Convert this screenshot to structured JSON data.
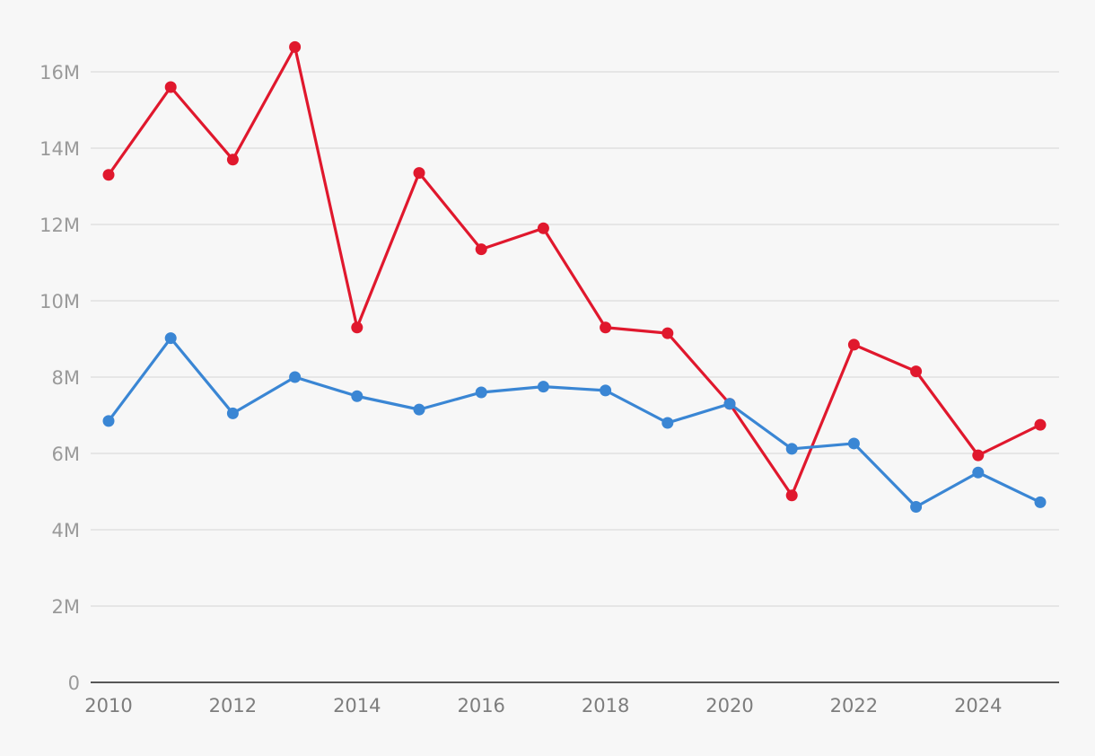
{
  "chart_data": {
    "type": "line",
    "title": "",
    "xlabel": "",
    "ylabel": "",
    "x": [
      2010,
      2011,
      2012,
      2013,
      2014,
      2015,
      2016,
      2017,
      2018,
      2019,
      2020,
      2021,
      2022,
      2023,
      2024,
      2025
    ],
    "xticks": [
      {
        "value": 2010,
        "label": "2010"
      },
      {
        "value": 2012,
        "label": "2012"
      },
      {
        "value": 2014,
        "label": "2014"
      },
      {
        "value": 2016,
        "label": "2016"
      },
      {
        "value": 2018,
        "label": "2018"
      },
      {
        "value": 2020,
        "label": "2020"
      },
      {
        "value": 2022,
        "label": "2022"
      },
      {
        "value": 2024,
        "label": "2024"
      }
    ],
    "yticks": [
      {
        "value": 0,
        "label": "0"
      },
      {
        "value": 2000000,
        "label": "2M"
      },
      {
        "value": 4000000,
        "label": "4M"
      },
      {
        "value": 6000000,
        "label": "6M"
      },
      {
        "value": 8000000,
        "label": "8M"
      },
      {
        "value": 10000000,
        "label": "10M"
      },
      {
        "value": 12000000,
        "label": "12M"
      },
      {
        "value": 14000000,
        "label": "14M"
      },
      {
        "value": 16000000,
        "label": "16M"
      }
    ],
    "xlim": [
      2010,
      2025
    ],
    "ylim": [
      0,
      16000000
    ],
    "grid": true,
    "legend": "none",
    "series": [
      {
        "color": "#e0182d",
        "values": [
          13300000,
          15600000,
          13700000,
          16650000,
          9300000,
          13350000,
          11350000,
          11900000,
          9300000,
          9150000,
          7300000,
          4900000,
          8850000,
          8150000,
          5950000,
          6750000
        ]
      },
      {
        "color": "#3a86d4",
        "values": [
          6850000,
          9020000,
          7050000,
          8000000,
          7500000,
          7150000,
          7600000,
          7750000,
          7650000,
          6800000,
          7300000,
          6120000,
          6260000,
          4600000,
          5500000,
          4720000
        ]
      }
    ]
  }
}
